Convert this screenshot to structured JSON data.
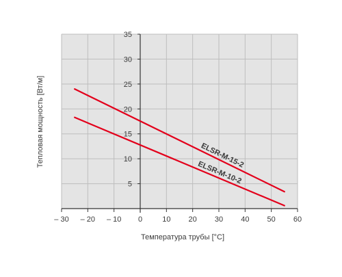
{
  "chart_data": {
    "type": "line",
    "xlabel": "Температура трубы [°C]",
    "ylabel": "Тепловая мощность [Вт/м]",
    "xlim": [
      -30,
      60
    ],
    "ylim": [
      0,
      35
    ],
    "x_ticks": [
      -30,
      -20,
      -10,
      0,
      10,
      20,
      30,
      40,
      50,
      60
    ],
    "x_tick_labels": [
      "– 30",
      "– 20",
      "– 10",
      "0",
      "10",
      "20",
      "30",
      "40",
      "50",
      "60"
    ],
    "y_ticks": [
      5,
      10,
      15,
      20,
      25,
      30,
      35
    ],
    "y_tick_labels": [
      "5",
      "10",
      "15",
      "20",
      "25",
      "30",
      "35"
    ],
    "grid": true,
    "series": [
      {
        "name": "ELSR-M-15-2",
        "x": [
          -25,
          55
        ],
        "y": [
          24.0,
          3.4
        ],
        "color": "#e3001b"
      },
      {
        "name": "ELSR-M-10-2",
        "x": [
          -25,
          55
        ],
        "y": [
          18.3,
          0.6
        ],
        "color": "#e3001b"
      }
    ]
  },
  "colors": {
    "plot_background": "#e4e4e4",
    "grid": "#bdbdbd",
    "axis": "#333333",
    "line": "#e3001b"
  }
}
